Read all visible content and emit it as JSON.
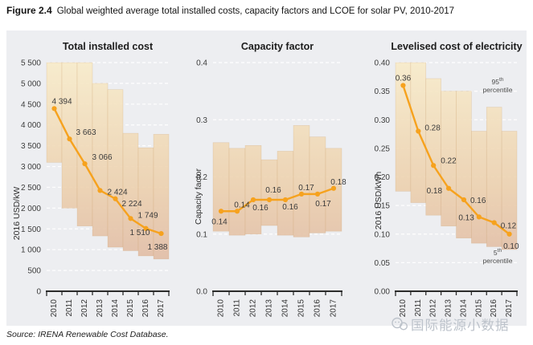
{
  "figure": {
    "label": "Figure 2.4",
    "title": "Global weighted average total installed costs, capacity factors and LCOE for solar PV, 2010-2017",
    "source": "Source: IRENA Renewable Cost Database."
  },
  "watermark": {
    "icon": "wechat-icon",
    "text": "国际能源小数据"
  },
  "colors": {
    "accent_line": "#F6A21E",
    "band_top": "#F8EBC9",
    "band_mid": "#ECD0AE",
    "band_bottom": "#DCB3A0",
    "band_edge": "rgba(200,158,110,0.35)",
    "plot_bg": "#EDEEF1",
    "grid": "#FFFFFF",
    "axis": "#2B2B2B",
    "tick_text": "#3C3C3C",
    "label_text": "#3A3A3A"
  },
  "chart_data": [
    {
      "type": "line",
      "title": "Total installed cost",
      "ylabel": "2016 USD/kW",
      "categories": [
        "2010",
        "2011",
        "2012",
        "2013",
        "2014",
        "2015",
        "2016",
        "2017"
      ],
      "values": [
        4394,
        3663,
        3066,
        2424,
        2224,
        1749,
        1510,
        1388
      ],
      "value_labels": [
        "4 394",
        "3 663",
        "3 066",
        "2 424",
        "2 224",
        "1 749",
        "1 510",
        "1 388"
      ],
      "band_high": [
        5500,
        5500,
        5500,
        5000,
        4850,
        3800,
        3450,
        3775
      ],
      "band_low": [
        3100,
        2000,
        1570,
        1330,
        1060,
        975,
        850,
        775
      ],
      "band_meaning": "5th to 95th percentile range",
      "ylim": [
        0,
        5500
      ],
      "yticks": [
        0,
        500,
        1000,
        1500,
        2000,
        2500,
        3000,
        3500,
        4000,
        4500,
        5000,
        5500
      ],
      "ytick_labels": [
        "0",
        "500",
        "1 000",
        "1 500",
        "2 000",
        "2 500",
        "3 000",
        "3 500",
        "4 000",
        "4 500",
        "5 000",
        "5 500"
      ],
      "grid": true,
      "legend": false
    },
    {
      "type": "line",
      "title": "Capacity factor",
      "ylabel": "Capacity factor",
      "categories": [
        "2010",
        "2011",
        "2012",
        "2013",
        "2014",
        "2015",
        "2016",
        "2017"
      ],
      "values": [
        0.14,
        0.14,
        0.16,
        0.16,
        0.16,
        0.17,
        0.17,
        0.18
      ],
      "value_labels": [
        "0.14",
        "0.14",
        "0.16",
        "0.16",
        "0.16",
        "0.17",
        "0.17",
        "0.18"
      ],
      "band_high": [
        0.26,
        0.25,
        0.255,
        0.23,
        0.245,
        0.29,
        0.27,
        0.25
      ],
      "band_low": [
        0.105,
        0.098,
        0.1,
        0.115,
        0.098,
        0.095,
        0.102,
        0.105
      ],
      "band_meaning": "5th to 95th percentile range",
      "ylim": [
        0,
        0.4
      ],
      "yticks": [
        0,
        0.1,
        0.2,
        0.3,
        0.4
      ],
      "ytick_labels": [
        "0.0",
        "0.1",
        "0.2",
        "0.3",
        "0.4"
      ],
      "grid": true,
      "legend": false
    },
    {
      "type": "line",
      "title": "Levelised cost of electricity",
      "ylabel": "2016 USD/kWh",
      "categories": [
        "2010",
        "2011",
        "2012",
        "2013",
        "2014",
        "2015",
        "2016",
        "2017"
      ],
      "values": [
        0.36,
        0.28,
        0.22,
        0.18,
        0.16,
        0.13,
        0.12,
        0.1
      ],
      "value_labels": [
        "0.36",
        "0.28",
        "0.22",
        "0.18",
        "0.16",
        "0.13",
        "0.12",
        "0.10"
      ],
      "band_high": [
        0.4,
        0.4,
        0.372,
        0.35,
        0.35,
        0.28,
        0.322,
        0.28
      ],
      "band_low": [
        0.175,
        0.155,
        0.133,
        0.114,
        0.093,
        0.084,
        0.078,
        0.073
      ],
      "band_meaning": "5th to 95th percentile range",
      "ylim": [
        0,
        0.4
      ],
      "yticks": [
        0,
        0.05,
        0.1,
        0.15,
        0.2,
        0.25,
        0.3,
        0.35,
        0.4
      ],
      "ytick_labels": [
        "0.00",
        "0.05",
        "0.10",
        "0.15",
        "0.20",
        "0.25",
        "0.30",
        "0.35",
        "0.40"
      ],
      "grid": true,
      "legend": false,
      "annotations": [
        {
          "num": "95",
          "sup": "th",
          "word": "percentile",
          "position": "top-right"
        },
        {
          "num": "5",
          "sup": "th",
          "word": "percentile",
          "position": "bottom-right"
        }
      ]
    }
  ]
}
